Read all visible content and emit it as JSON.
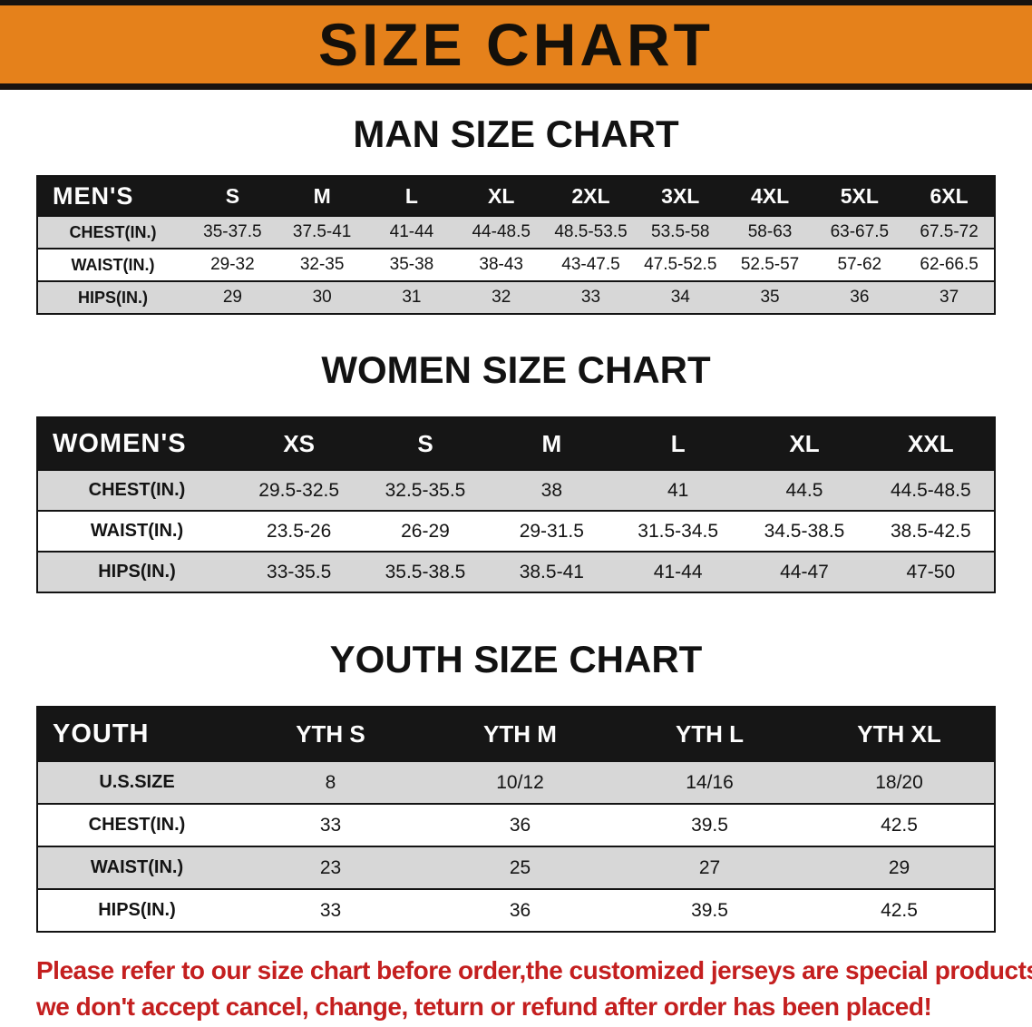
{
  "banner": {
    "title": "SIZE CHART"
  },
  "colors": {
    "banner_bg": "#e5811b",
    "table_header_bg": "#161616",
    "row_alt_bg": "#d7d7d7",
    "disclaimer_text": "#c41f1f"
  },
  "sections": [
    {
      "id": "men",
      "heading": "MAN SIZE CHART",
      "table": {
        "columns": [
          "MEN'S",
          "S",
          "M",
          "L",
          "XL",
          "2XL",
          "3XL",
          "4XL",
          "5XL",
          "6XL"
        ],
        "rows": [
          [
            "CHEST(IN.)",
            "35-37.5",
            "37.5-41",
            "41-44",
            "44-48.5",
            "48.5-53.5",
            "53.5-58",
            "58-63",
            "63-67.5",
            "67.5-72"
          ],
          [
            "WAIST(IN.)",
            "29-32",
            "32-35",
            "35-38",
            "38-43",
            "43-47.5",
            "47.5-52.5",
            "52.5-57",
            "57-62",
            "62-66.5"
          ],
          [
            "HIPS(IN.)",
            "29",
            "30",
            "31",
            "32",
            "33",
            "34",
            "35",
            "36",
            "37"
          ]
        ]
      }
    },
    {
      "id": "women",
      "heading": "WOMEN SIZE CHART",
      "table": {
        "columns": [
          "WOMEN'S",
          "XS",
          "S",
          "M",
          "L",
          "XL",
          "XXL"
        ],
        "rows": [
          [
            "CHEST(IN.)",
            "29.5-32.5",
            "32.5-35.5",
            "38",
            "41",
            "44.5",
            "44.5-48.5"
          ],
          [
            "WAIST(IN.)",
            "23.5-26",
            "26-29",
            "29-31.5",
            "31.5-34.5",
            "34.5-38.5",
            "38.5-42.5"
          ],
          [
            "HIPS(IN.)",
            "33-35.5",
            "35.5-38.5",
            "38.5-41",
            "41-44",
            "44-47",
            "47-50"
          ]
        ]
      }
    },
    {
      "id": "youth",
      "heading": "YOUTH SIZE CHART",
      "table": {
        "columns": [
          "YOUTH",
          "YTH S",
          "YTH M",
          "YTH L",
          "YTH XL"
        ],
        "rows": [
          [
            "U.S.SIZE",
            "8",
            "10/12",
            "14/16",
            "18/20"
          ],
          [
            "CHEST(IN.)",
            "33",
            "36",
            "39.5",
            "42.5"
          ],
          [
            "WAIST(IN.)",
            "23",
            "25",
            "27",
            "29"
          ],
          [
            "HIPS(IN.)",
            "33",
            "36",
            "39.5",
            "42.5"
          ]
        ]
      }
    }
  ],
  "disclaimer": {
    "line1": "Please refer to our size chart before order,the customized jerseys are special products,",
    "line2": "we don't accept cancel, change, teturn or refund after order has been placed!"
  }
}
